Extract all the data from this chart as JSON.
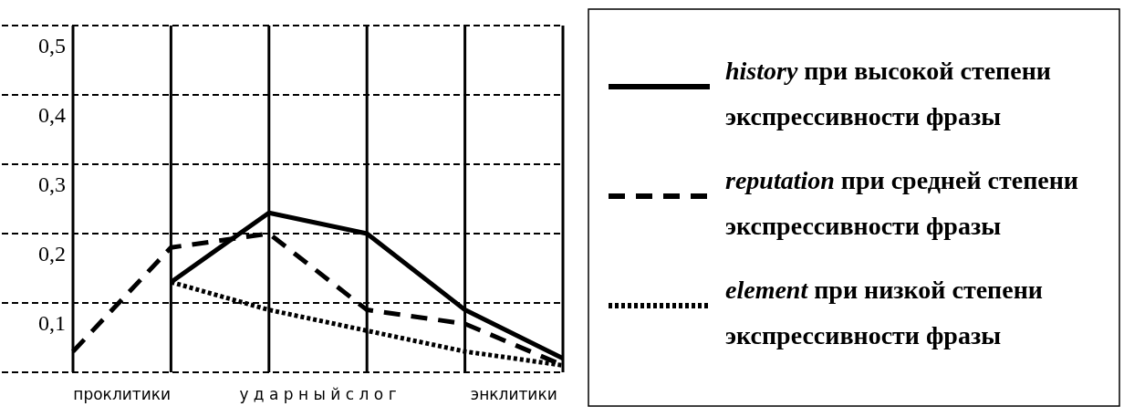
{
  "chart_data": {
    "type": "line",
    "categories": [
      null,
      null,
      null,
      null,
      null,
      null
    ],
    "ylim": [
      0,
      0.5
    ],
    "yticks": [
      {
        "value": 0,
        "label": null
      },
      {
        "value": 0.1,
        "label": "0,1"
      },
      {
        "value": 0.2,
        "label": "0,2"
      },
      {
        "value": 0.3,
        "label": "0,3"
      },
      {
        "value": 0.4,
        "label": "0,4"
      },
      {
        "value": 0.5,
        "label": "0,5"
      }
    ],
    "grid": true,
    "legend": "right",
    "marker": "none",
    "annotations": [
      "проклитики",
      "у д а р н ы й     с л о г",
      "энклитики"
    ],
    "series": [
      {
        "name": "history при высокой степени экспрессивности фразы",
        "color": "#000000",
        "line_style": "solid",
        "values": [
          null,
          0.13,
          0.23,
          0.2,
          0.09,
          0.02
        ]
      },
      {
        "name": "reputation при средней степени экспрессивности фразы",
        "color": "#000000",
        "line_style": "dashed",
        "values": [
          0.03,
          0.18,
          0.2,
          0.09,
          0.07,
          0.01
        ]
      },
      {
        "name": "element при низкой степени экспрессивности фразы",
        "color": "#000000",
        "line_style": "dotted",
        "values": [
          null,
          0.13,
          0.09,
          0.06,
          0.03,
          0.01
        ]
      }
    ]
  }
}
